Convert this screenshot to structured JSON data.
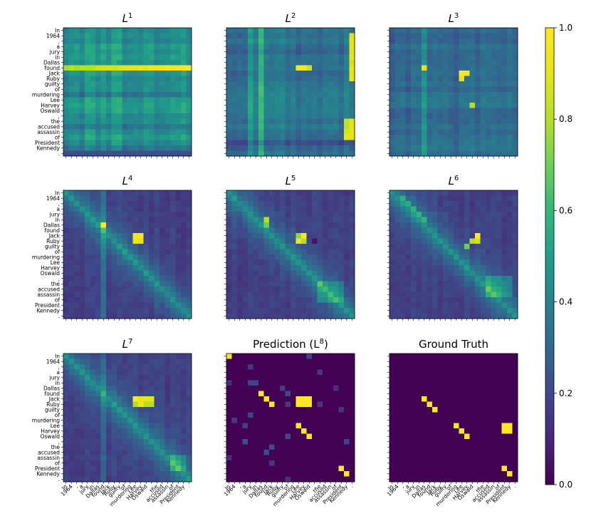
{
  "chart_data": {
    "type": "heatmap",
    "tokens": [
      "In",
      "1964",
      ",",
      "a",
      "jury",
      "in",
      "Dallas",
      "found",
      "Jack",
      "Ruby",
      "guilty",
      "of",
      "murdering",
      "Lee",
      "Harvey",
      "Oswald",
      ",",
      "the",
      "accused",
      "assassin",
      "of",
      "President",
      "Kennedy",
      "."
    ],
    "panels": [
      {
        "title": "L",
        "sup": "1",
        "show_y_labels": true,
        "show_x_labels": false
      },
      {
        "title": "L",
        "sup": "2",
        "show_y_labels": false,
        "show_x_labels": false
      },
      {
        "title": "L",
        "sup": "3",
        "show_y_labels": false,
        "show_x_labels": false
      },
      {
        "title": "L",
        "sup": "4",
        "show_y_labels": true,
        "show_x_labels": false
      },
      {
        "title": "L",
        "sup": "5",
        "show_y_labels": false,
        "show_x_labels": false
      },
      {
        "title": "L",
        "sup": "6",
        "show_y_labels": false,
        "show_x_labels": false
      },
      {
        "title": "L",
        "sup": "7",
        "show_y_labels": true,
        "show_x_labels": true
      },
      {
        "title": "Prediction (L",
        "sup": "8",
        "suffix": ")",
        "show_y_labels": false,
        "show_x_labels": true
      },
      {
        "title": "Ground Truth",
        "sup": "",
        "show_y_labels": false,
        "show_x_labels": true
      }
    ],
    "ground_truth_cells": [
      [
        8,
        6
      ],
      [
        9,
        7
      ],
      [
        10,
        8
      ],
      [
        13,
        12
      ],
      [
        14,
        13
      ],
      [
        15,
        14
      ],
      [
        13,
        21
      ],
      [
        13,
        22
      ],
      [
        14,
        21
      ],
      [
        14,
        22
      ],
      [
        21,
        21
      ],
      [
        22,
        22
      ]
    ],
    "prediction_cells": [
      [
        0,
        0
      ],
      [
        7,
        6
      ],
      [
        8,
        7
      ],
      [
        9,
        8
      ],
      [
        8,
        13
      ],
      [
        8,
        14
      ],
      [
        8,
        15
      ],
      [
        9,
        13
      ],
      [
        9,
        14
      ],
      [
        9,
        15
      ],
      [
        13,
        13
      ],
      [
        14,
        14
      ],
      [
        15,
        15
      ],
      [
        21,
        21
      ],
      [
        22,
        22
      ]
    ],
    "colorbar": {
      "min": 0.0,
      "max": 1.0,
      "ticks": [
        "0.0",
        "0.2",
        "0.4",
        "0.6",
        "0.8",
        "1.0"
      ]
    }
  }
}
